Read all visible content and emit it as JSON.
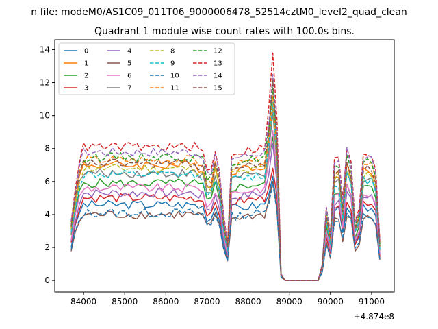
{
  "suptitle": "n file: modeM0/AS1C09_011T06_9000006478_52514cztM0_level2_quad_clean",
  "chart_data": {
    "type": "line",
    "title": "Quadrant 1 module wise count rates with 100.0s bins.",
    "xlabel": "",
    "ylabel": "",
    "x_offset_label": "+4.874e8",
    "xlim": [
      83300,
      91550
    ],
    "ylim": [
      -0.7,
      14.6
    ],
    "xticks": [
      84000,
      85000,
      86000,
      87000,
      88000,
      89000,
      90000,
      91000
    ],
    "yticks": [
      0,
      2,
      4,
      6,
      8,
      10,
      12,
      14
    ],
    "grid": false,
    "legend_position": "upper-left",
    "legend_columns": 4,
    "time_start": 83700,
    "time_step": 100,
    "n_points": 76,
    "series": [
      {
        "name": "0",
        "color": "#1f77b4",
        "dash": "solid",
        "plateau": 4.6,
        "peak": 6.2
      },
      {
        "name": "1",
        "color": "#ff7f0e",
        "dash": "solid",
        "plateau": 7.0,
        "peak": 10.4
      },
      {
        "name": "2",
        "color": "#2ca02c",
        "dash": "solid",
        "plateau": 5.9,
        "peak": 8.8
      },
      {
        "name": "3",
        "color": "#d62728",
        "dash": "solid",
        "plateau": 5.0,
        "peak": 7.0
      },
      {
        "name": "4",
        "color": "#9467bd",
        "dash": "solid",
        "plateau": 5.3,
        "peak": 8.2
      },
      {
        "name": "5",
        "color": "#8c564b",
        "dash": "solid",
        "plateau": 4.0,
        "peak": 6.0
      },
      {
        "name": "6",
        "color": "#e377c2",
        "dash": "solid",
        "plateau": 5.6,
        "peak": 9.2
      },
      {
        "name": "7",
        "color": "#7f7f7f",
        "dash": "solid",
        "plateau": 6.5,
        "peak": 10.0
      },
      {
        "name": "8",
        "color": "#bcbd22",
        "dash": "dashed",
        "plateau": 6.8,
        "peak": 10.5
      },
      {
        "name": "9",
        "color": "#17becf",
        "dash": "dashed",
        "plateau": 6.4,
        "peak": 10.8
      },
      {
        "name": "10",
        "color": "#1f77b4",
        "dash": "dashed",
        "plateau": 4.1,
        "peak": 6.0
      },
      {
        "name": "11",
        "color": "#ff7f0e",
        "dash": "dashed",
        "plateau": 7.3,
        "peak": 11.0
      },
      {
        "name": "12",
        "color": "#2ca02c",
        "dash": "dashed",
        "plateau": 7.5,
        "peak": 11.6
      },
      {
        "name": "13",
        "color": "#d62728",
        "dash": "dashed",
        "plateau": 8.1,
        "peak": 13.8
      },
      {
        "name": "14",
        "color": "#9467bd",
        "dash": "dashed",
        "plateau": 7.8,
        "peak": 12.6
      },
      {
        "name": "15",
        "color": "#8c564b",
        "dash": "dashed",
        "plateau": 7.1,
        "peak": 12.0
      }
    ]
  }
}
